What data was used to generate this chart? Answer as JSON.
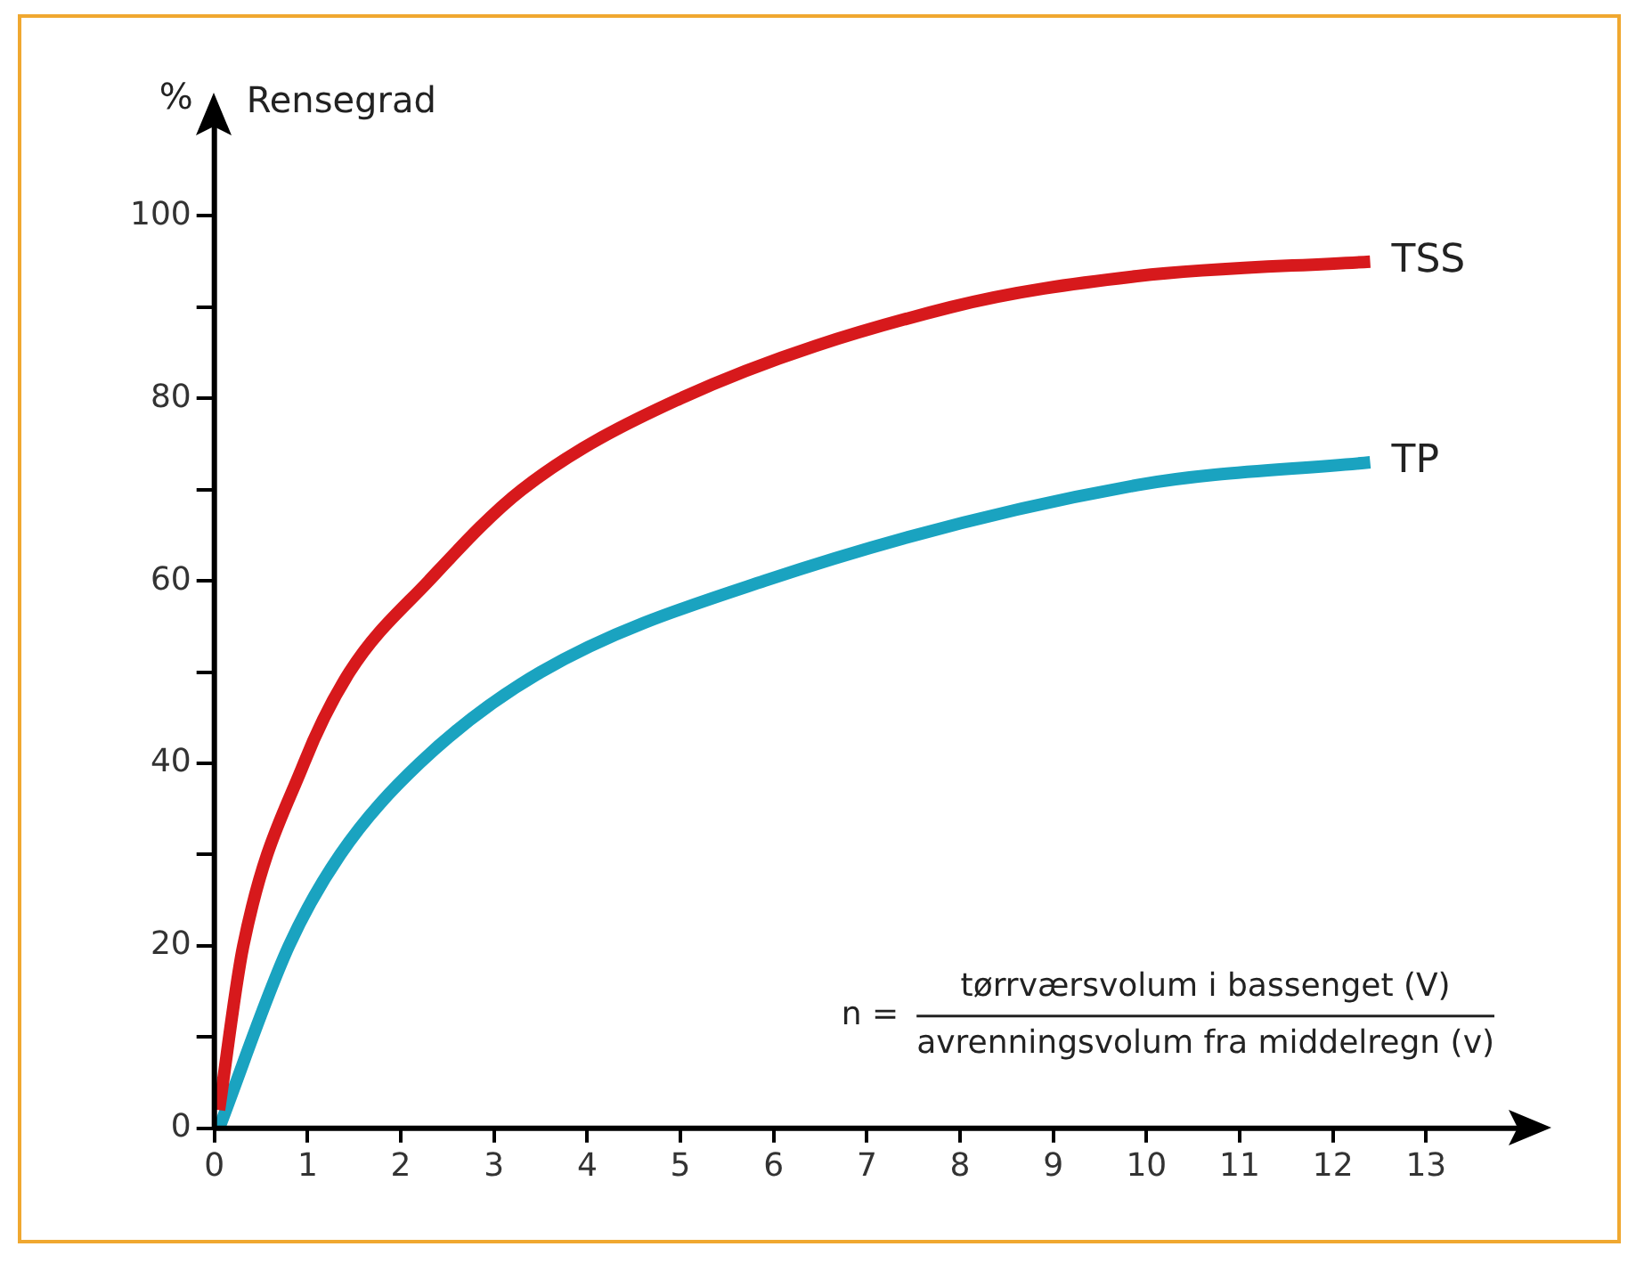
{
  "chart_data": {
    "type": "line",
    "ylabel": "%",
    "xlim": [
      0,
      14
    ],
    "ylim": [
      0,
      110
    ],
    "xticks": [
      0,
      1,
      2,
      3,
      4,
      5,
      6,
      7,
      8,
      9,
      10,
      11,
      12,
      13
    ],
    "yticks": [
      0,
      {
        "value": 10,
        "label": null
      },
      20,
      {
        "value": 30,
        "label": null
      },
      40,
      {
        "value": 50,
        "label": null
      },
      60,
      {
        "value": 70,
        "label": null
      },
      80,
      {
        "value": 90,
        "label": null
      },
      100
    ],
    "grid": false,
    "legend": false,
    "marker": "none",
    "line_style": "solid",
    "annotations": [
      "Rensegrad",
      "n =",
      "tørrværsvolum i bassenget (V)",
      "avrenningsvolum fra middelregn (v)"
    ],
    "series": [
      {
        "name": "TSS",
        "color": "#d7191c",
        "x": [
          0.05,
          0.31,
          0.96,
          1.45,
          2.3,
          3.3,
          5,
          7.9,
          9.9,
          12.4
        ],
        "values": [
          2,
          20,
          40,
          50,
          60,
          70,
          80,
          90,
          93.4,
          95
        ]
      },
      {
        "name": "TP",
        "color": "#1aa3c0",
        "x": [
          0.05,
          0.8,
          1.35,
          2.2,
          3.5,
          5.9,
          9.9,
          12.4
        ],
        "values": [
          0,
          20,
          30,
          40,
          50,
          60,
          70.5,
          73
        ]
      }
    ]
  }
}
